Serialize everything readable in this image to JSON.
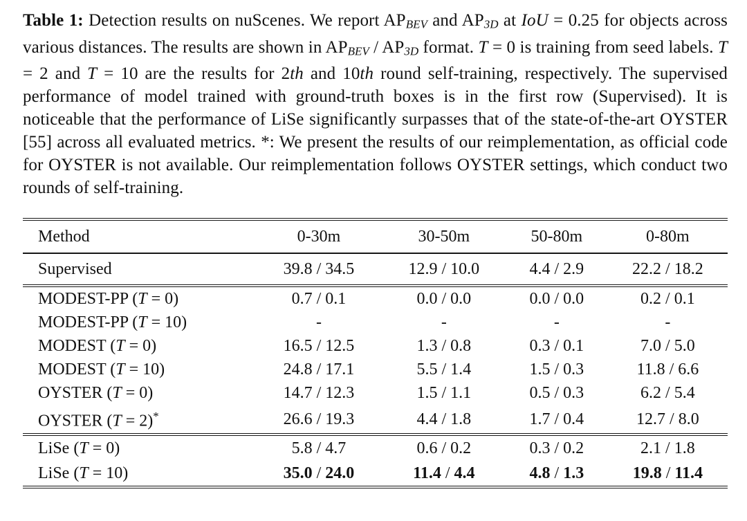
{
  "caption": {
    "segments": [
      {
        "t": "Table 1:",
        "s": "b"
      },
      {
        "t": " Detection results on nuScenes. We report AP",
        "s": "n"
      },
      {
        "t": "BEV",
        "s": "sub"
      },
      {
        "t": " and AP",
        "s": "n"
      },
      {
        "t": "3D",
        "s": "sub"
      },
      {
        "t": " at ",
        "s": "n"
      },
      {
        "t": "IoU",
        "s": "i"
      },
      {
        "t": " = 0.25 for objects across various distances. The results are shown in AP",
        "s": "n"
      },
      {
        "t": "BEV",
        "s": "sub"
      },
      {
        "t": " / AP",
        "s": "n"
      },
      {
        "t": "3D",
        "s": "sub"
      },
      {
        "t": " format. ",
        "s": "n"
      },
      {
        "t": "T",
        "s": "i"
      },
      {
        "t": " = 0 is training from seed labels. ",
        "s": "n"
      },
      {
        "t": "T",
        "s": "i"
      },
      {
        "t": " = 2 and ",
        "s": "n"
      },
      {
        "t": "T",
        "s": "i"
      },
      {
        "t": " = 10 are the results for 2",
        "s": "n"
      },
      {
        "t": "th",
        "s": "i"
      },
      {
        "t": " and 10",
        "s": "n"
      },
      {
        "t": "th",
        "s": "i"
      },
      {
        "t": " round self-training, respectively. The supervised performance of model trained with ground-truth boxes is in the first row (Supervised). It is noticeable that the performance of LiSe significantly surpasses that of the state-of-the-art OYSTER [55] across all evaluated metrics. *: We present the results of our reimplementation, as official code for OYSTER is not available. Our reimplementation follows OYSTER settings, which conduct two rounds of self-training.",
        "s": "n"
      }
    ]
  },
  "table": {
    "headers": [
      "Method",
      "0-30m",
      "30-50m",
      "50-80m",
      "0-80m"
    ],
    "value_format": "AP_BEV / AP_3D",
    "groups": [
      {
        "name": "supervised",
        "rows": [
          {
            "method": [
              {
                "t": "Supervised",
                "s": "n"
              }
            ],
            "values": [
              "39.8 / 34.5",
              "12.9 / 10.0",
              "4.4 / 2.9",
              "22.2 / 18.2"
            ],
            "bold": false
          }
        ]
      },
      {
        "name": "baselines",
        "rows": [
          {
            "method": [
              {
                "t": "MODEST-PP (",
                "s": "n"
              },
              {
                "t": "T",
                "s": "i"
              },
              {
                "t": " = 0)",
                "s": "n"
              }
            ],
            "values": [
              "0.7 / 0.1",
              "0.0 / 0.0",
              "0.0 / 0.0",
              "0.2 / 0.1"
            ],
            "bold": false
          },
          {
            "method": [
              {
                "t": "MODEST-PP (",
                "s": "n"
              },
              {
                "t": "T",
                "s": "i"
              },
              {
                "t": " = 10)",
                "s": "n"
              }
            ],
            "values": [
              "-",
              "-",
              "-",
              "-"
            ],
            "bold": false
          },
          {
            "method": [
              {
                "t": "MODEST (",
                "s": "n"
              },
              {
                "t": "T",
                "s": "i"
              },
              {
                "t": " = 0)",
                "s": "n"
              }
            ],
            "values": [
              "16.5 / 12.5",
              "1.3 / 0.8",
              "0.3 / 0.1",
              "7.0 / 5.0"
            ],
            "bold": false
          },
          {
            "method": [
              {
                "t": "MODEST (",
                "s": "n"
              },
              {
                "t": "T",
                "s": "i"
              },
              {
                "t": " = 10)",
                "s": "n"
              }
            ],
            "values": [
              "24.8 / 17.1",
              "5.5 / 1.4",
              "1.5 / 0.3",
              "11.8 / 6.6"
            ],
            "bold": false
          },
          {
            "method": [
              {
                "t": "OYSTER (",
                "s": "n"
              },
              {
                "t": "T",
                "s": "i"
              },
              {
                "t": " = 0)",
                "s": "n"
              }
            ],
            "values": [
              "14.7 / 12.3",
              "1.5 / 1.1",
              "0.5 / 0.3",
              "6.2 / 5.4"
            ],
            "bold": false
          },
          {
            "method": [
              {
                "t": "OYSTER (",
                "s": "n"
              },
              {
                "t": "T",
                "s": "i"
              },
              {
                "t": " = 2)",
                "s": "n"
              },
              {
                "t": "*",
                "s": "sup"
              }
            ],
            "values": [
              "26.6 / 19.3",
              "4.4 / 1.8",
              "1.7 / 0.4",
              "12.7 / 8.0"
            ],
            "bold": false
          }
        ]
      },
      {
        "name": "lise",
        "rows": [
          {
            "method": [
              {
                "t": "LiSe (",
                "s": "n"
              },
              {
                "t": "T",
                "s": "i"
              },
              {
                "t": " = 0)",
                "s": "n"
              }
            ],
            "values": [
              "5.8 / 4.7",
              "0.6 / 0.2",
              "0.3 / 0.2",
              "2.1 / 1.8"
            ],
            "bold": false
          },
          {
            "method": [
              {
                "t": "LiSe (",
                "s": "n"
              },
              {
                "t": "T",
                "s": "i"
              },
              {
                "t": " = 10)",
                "s": "n"
              }
            ],
            "values": [
              "35.0 / 24.0",
              "11.4 / 4.4",
              "4.8 / 1.3",
              "19.8 / 11.4"
            ],
            "bold": true
          }
        ]
      }
    ]
  },
  "colors": {
    "background": "#ffffff",
    "text": "#111111",
    "rule": "#151515"
  }
}
